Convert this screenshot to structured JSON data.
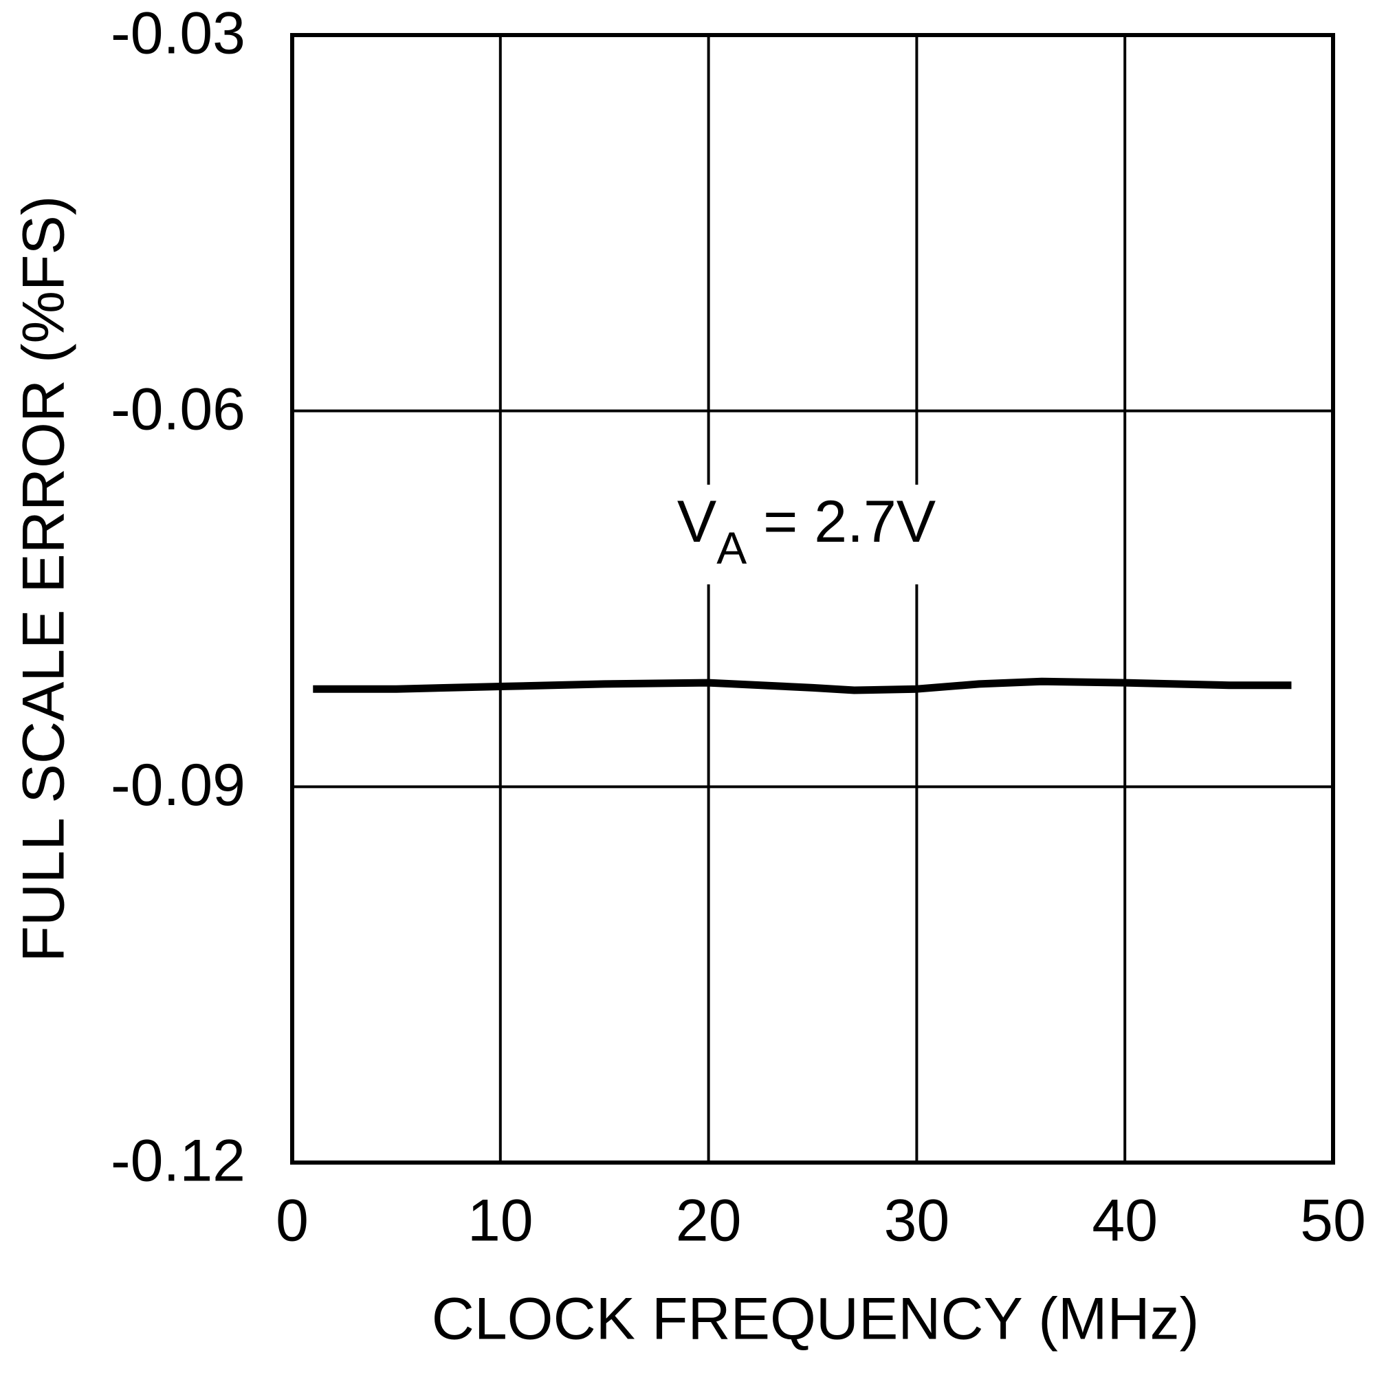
{
  "chart_data": {
    "type": "line",
    "x_label": "CLOCK FREQUENCY (MHz)",
    "y_label": "FULL SCALE ERROR (%FS)",
    "annotation": {
      "text": "V",
      "subscript": "A",
      "rest": " = 2.7V"
    },
    "x": [
      1,
      5,
      10,
      15,
      20,
      25,
      27,
      30,
      33,
      36,
      40,
      45,
      48
    ],
    "series": [
      {
        "color": "#000000",
        "values": [
          -0.0822,
          -0.0822,
          -0.082,
          -0.0818,
          -0.0817,
          -0.0821,
          -0.0823,
          -0.0822,
          -0.0818,
          -0.0816,
          -0.0817,
          -0.0819,
          -0.0819
        ]
      }
    ],
    "xlim": [
      0,
      50
    ],
    "xticks": [
      0,
      10,
      20,
      30,
      40,
      50
    ],
    "ylim": [
      -0.12,
      -0.03
    ],
    "yticks": [
      -0.12,
      -0.09,
      -0.06,
      -0.03
    ],
    "grid": true
  }
}
